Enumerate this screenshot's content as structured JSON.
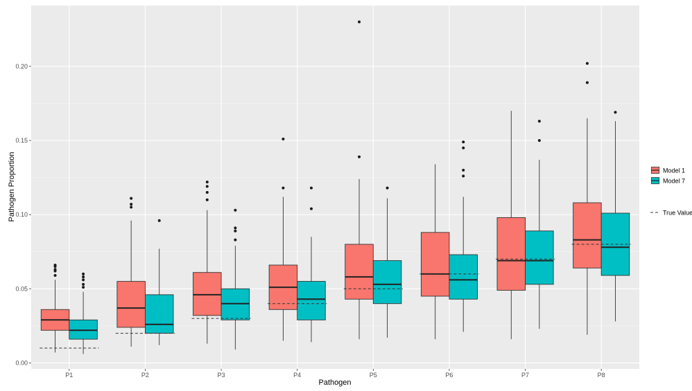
{
  "chart_data": {
    "type": "boxplot",
    "xlabel": "Pathogen",
    "ylabel": "Pathogen Proportion",
    "ylim": [
      -0.004,
      0.241
    ],
    "yticks": [
      0.0,
      0.05,
      0.1,
      0.15,
      0.2
    ],
    "ytick_labels": [
      "0.00",
      "0.05",
      "0.10",
      "0.15",
      "0.20"
    ],
    "categories": [
      "P1",
      "P2",
      "P3",
      "P4",
      "P5",
      "P6",
      "P7",
      "P8"
    ],
    "legend_position": "right",
    "background": "#ebebeb",
    "grid": true,
    "series": [
      {
        "name": "Model 1",
        "color": "#f8766d",
        "boxes": [
          {
            "whisker_low": 0.007,
            "q1": 0.022,
            "median": 0.029,
            "q3": 0.036,
            "whisker_high": 0.056,
            "outliers": [
              0.059,
              0.062,
              0.063,
              0.065,
              0.066
            ]
          },
          {
            "whisker_low": 0.011,
            "q1": 0.024,
            "median": 0.037,
            "q3": 0.055,
            "whisker_high": 0.096,
            "outliers": [
              0.105,
              0.107,
              0.111
            ]
          },
          {
            "whisker_low": 0.013,
            "q1": 0.032,
            "median": 0.046,
            "q3": 0.061,
            "whisker_high": 0.103,
            "outliers": [
              0.11,
              0.115,
              0.119,
              0.122
            ]
          },
          {
            "whisker_low": 0.015,
            "q1": 0.036,
            "median": 0.051,
            "q3": 0.066,
            "whisker_high": 0.112,
            "outliers": [
              0.118,
              0.151
            ]
          },
          {
            "whisker_low": 0.016,
            "q1": 0.043,
            "median": 0.058,
            "q3": 0.08,
            "whisker_high": 0.124,
            "outliers": [
              0.139,
              0.23
            ]
          },
          {
            "whisker_low": 0.016,
            "q1": 0.045,
            "median": 0.06,
            "q3": 0.088,
            "whisker_high": 0.134,
            "outliers": []
          },
          {
            "whisker_low": 0.016,
            "q1": 0.049,
            "median": 0.069,
            "q3": 0.098,
            "whisker_high": 0.17,
            "outliers": []
          },
          {
            "whisker_low": 0.019,
            "q1": 0.064,
            "median": 0.083,
            "q3": 0.108,
            "whisker_high": 0.165,
            "outliers": [
              0.189,
              0.202
            ]
          }
        ]
      },
      {
        "name": "Model 7",
        "color": "#00bfc4",
        "boxes": [
          {
            "whisker_low": 0.006,
            "q1": 0.016,
            "median": 0.022,
            "q3": 0.029,
            "whisker_high": 0.048,
            "outliers": [
              0.051,
              0.053,
              0.056,
              0.058,
              0.06
            ]
          },
          {
            "whisker_low": 0.012,
            "q1": 0.02,
            "median": 0.026,
            "q3": 0.046,
            "whisker_high": 0.077,
            "outliers": [
              0.096
            ]
          },
          {
            "whisker_low": 0.009,
            "q1": 0.029,
            "median": 0.04,
            "q3": 0.05,
            "whisker_high": 0.079,
            "outliers": [
              0.083,
              0.089,
              0.091,
              0.103
            ]
          },
          {
            "whisker_low": 0.014,
            "q1": 0.029,
            "median": 0.043,
            "q3": 0.055,
            "whisker_high": 0.085,
            "outliers": [
              0.104,
              0.118
            ]
          },
          {
            "whisker_low": 0.017,
            "q1": 0.04,
            "median": 0.053,
            "q3": 0.069,
            "whisker_high": 0.111,
            "outliers": [
              0.118
            ]
          },
          {
            "whisker_low": 0.021,
            "q1": 0.043,
            "median": 0.056,
            "q3": 0.073,
            "whisker_high": 0.112,
            "outliers": [
              0.126,
              0.13,
              0.145,
              0.149
            ]
          },
          {
            "whisker_low": 0.023,
            "q1": 0.053,
            "median": 0.069,
            "q3": 0.089,
            "whisker_high": 0.137,
            "outliers": [
              0.15,
              0.163
            ]
          },
          {
            "whisker_low": 0.028,
            "q1": 0.059,
            "median": 0.078,
            "q3": 0.101,
            "whisker_high": 0.163,
            "outliers": [
              0.169
            ]
          }
        ]
      }
    ],
    "true_value": {
      "name": "True Value",
      "style": "dashed",
      "values": [
        0.01,
        0.02,
        0.03,
        0.04,
        0.05,
        0.06,
        0.07,
        0.08
      ]
    }
  }
}
